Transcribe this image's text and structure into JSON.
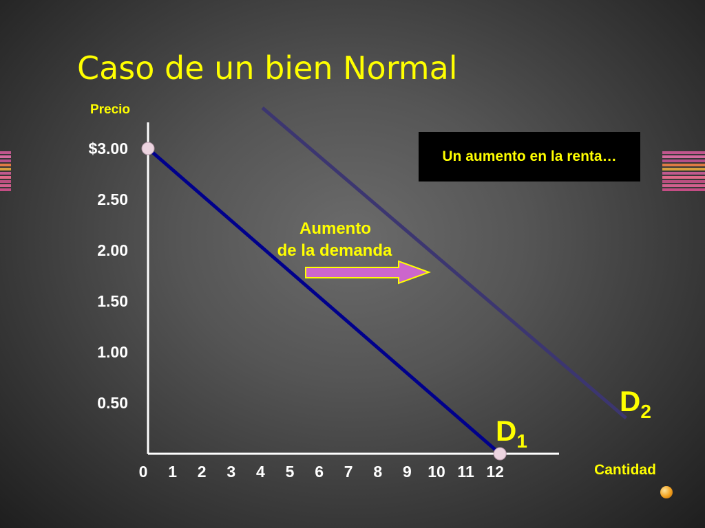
{
  "slide": {
    "title": "Caso de un bien Normal",
    "callout": "Un aumento en la renta…",
    "arrow_label_line1": "Aumento",
    "arrow_label_line2": "de la demanda"
  },
  "colors": {
    "title": "#ffff00",
    "labels": "#ffff00",
    "d1": "#00008b",
    "d2": "#3c3670",
    "arrow_fill": "#cc66cc",
    "arrow_stroke": "#ffff00",
    "point": "#ecd4e0",
    "axis": "#ffffff",
    "tick_text": "#ffffff"
  },
  "chart_data": {
    "type": "line",
    "title": "Caso de un bien Normal",
    "xlabel": "Cantidad",
    "ylabel": "Precio",
    "x_ticks": [
      "0",
      "1",
      "2",
      "3",
      "4",
      "5",
      "6",
      "7",
      "8",
      "9",
      "10",
      "11",
      "12"
    ],
    "y_ticks": [
      "0.50",
      "1.00",
      "1.50",
      "2.00",
      "2.50",
      "$3.00"
    ],
    "xlim": [
      0,
      14
    ],
    "ylim": [
      0,
      3.3
    ],
    "grid": false,
    "series": [
      {
        "name": "D1",
        "x": [
          0,
          12
        ],
        "y": [
          3.0,
          0
        ]
      },
      {
        "name": "D2",
        "x": [
          3.9,
          16.3
        ],
        "y": [
          3.4,
          0.35
        ]
      }
    ],
    "points": [
      {
        "x": 0,
        "y": 3.0
      },
      {
        "x": 12,
        "y": 0
      }
    ],
    "annotations": [
      "Un aumento en la renta…",
      "Aumento de la demanda"
    ]
  }
}
